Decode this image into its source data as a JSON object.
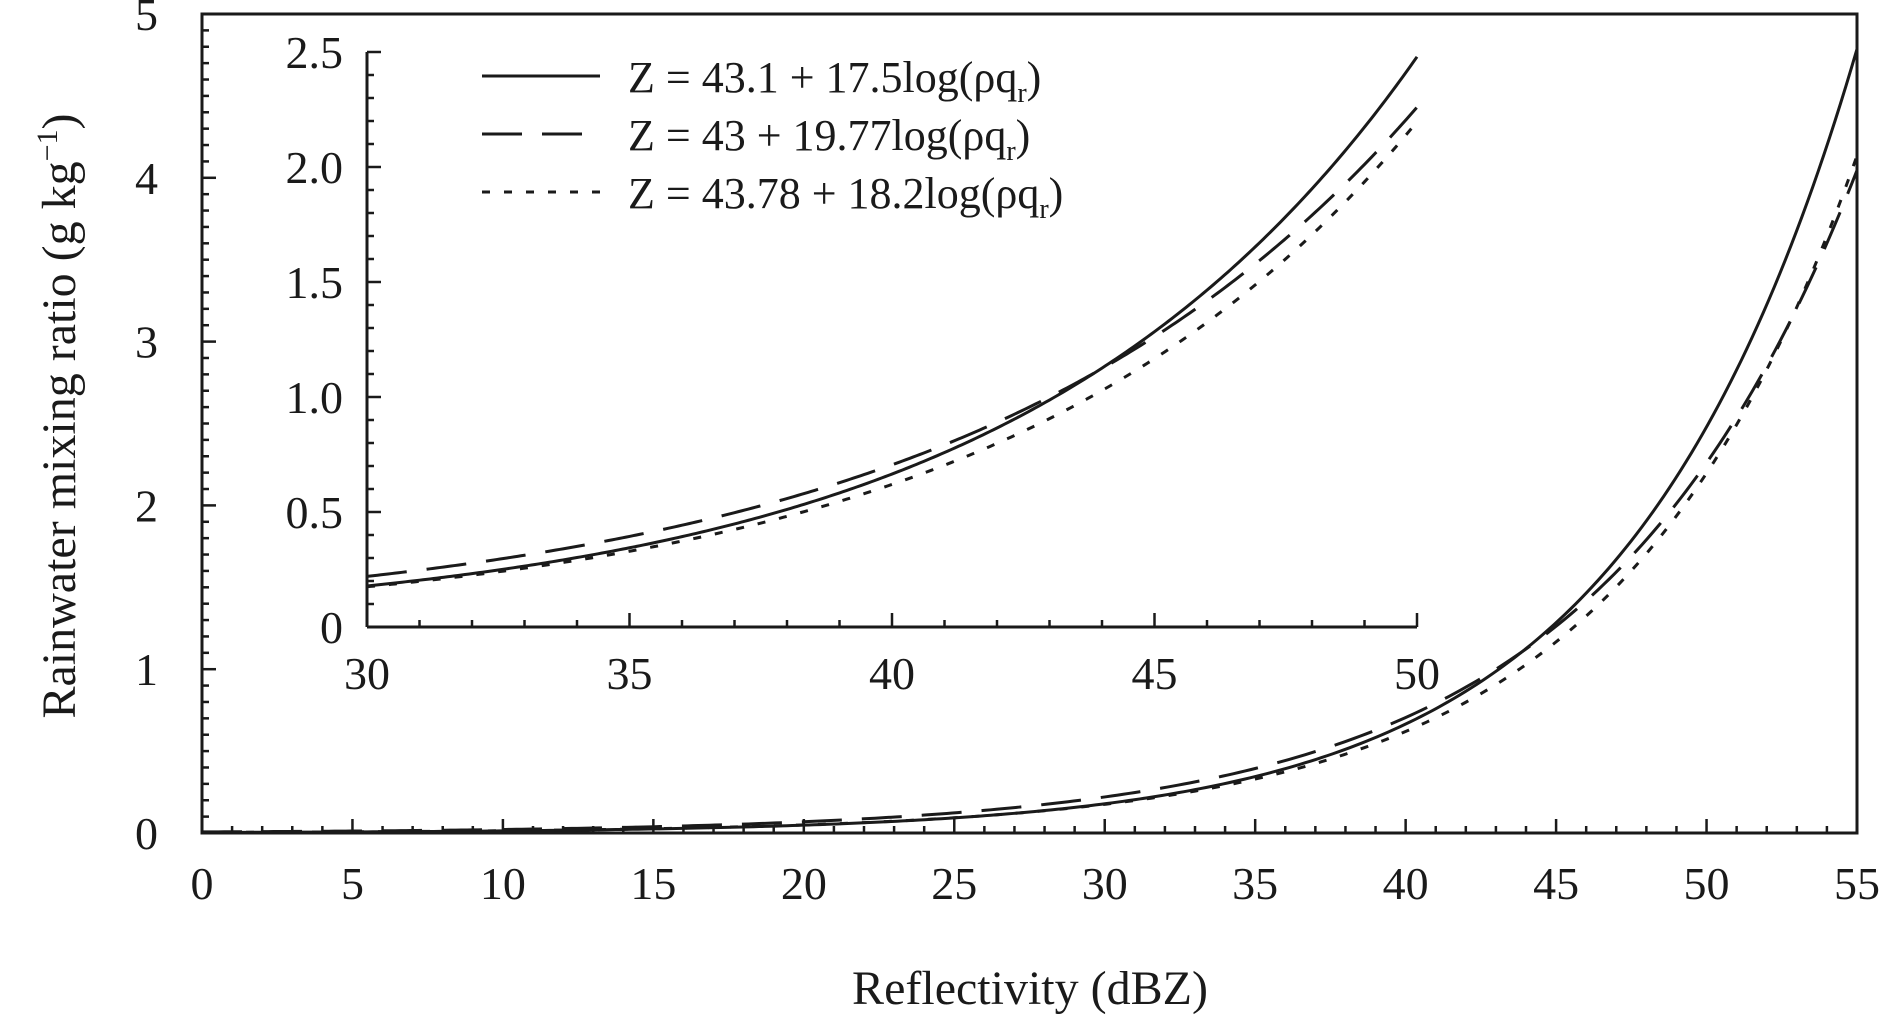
{
  "chart_data": {
    "type": "line",
    "xlabel": "Reflectivity (dBZ)",
    "ylabel_main": "Rainwater mixing ratio (g kg",
    "ylabel_sup": "−1",
    "ylabel_close": ")",
    "xlim": [
      0,
      55
    ],
    "ylim": [
      0,
      5
    ],
    "xticks": [
      0,
      5,
      10,
      15,
      20,
      25,
      30,
      35,
      40,
      45,
      50,
      55
    ],
    "xtick_labels": [
      "0",
      "5",
      "10",
      "15",
      "20",
      "25",
      "30",
      "35",
      "40",
      "45",
      "50",
      "55"
    ],
    "yticks": [
      0,
      1,
      2,
      3,
      4,
      5
    ],
    "ytick_labels": [
      "0",
      "1",
      "2",
      "3",
      "4",
      "5"
    ],
    "grid": false,
    "legend_placement": "top (inside inset)",
    "series": [
      {
        "label_prefix": "Z = 43.1 + 17.5log(ρq",
        "label_sub": "r",
        "label_suffix": ")",
        "line_style": "solid",
        "a": 43.1,
        "b": 17.5
      },
      {
        "label_prefix": "Z = 43 + 19.77log(ρq",
        "label_sub": "r",
        "label_suffix": ")",
        "line_style": "dashed",
        "a": 43,
        "b": 19.77
      },
      {
        "label_prefix": "Z = 43.78 + 18.2log(ρq",
        "label_sub": "r",
        "label_suffix": ")",
        "line_style": "dotted",
        "a": 43.78,
        "b": 18.2
      }
    ],
    "inset": {
      "xlim": [
        30,
        50
      ],
      "ylim": [
        0,
        2.5
      ],
      "xticks": [
        30,
        35,
        40,
        45,
        50
      ],
      "xtick_labels": [
        "30",
        "35",
        "40",
        "45",
        "50"
      ],
      "yticks": [
        0,
        0.5,
        1.0,
        1.5,
        2.0,
        2.5
      ],
      "ytick_labels": [
        "0",
        "0.5",
        "1.0",
        "1.5",
        "2.0",
        "2.5"
      ]
    },
    "colors": {
      "line": "#1a1a1a",
      "background": "#ffffff"
    }
  }
}
